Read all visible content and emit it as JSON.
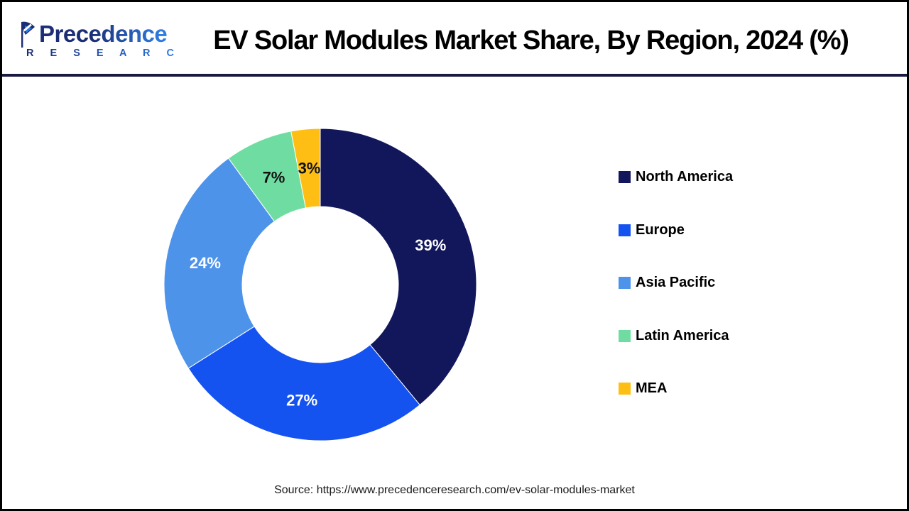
{
  "header": {
    "logo": {
      "name": "Precedence",
      "subtitle": "R E S E A R C H"
    },
    "title": "EV Solar Modules Market Share, By Region, 2024 (%)"
  },
  "chart_data": {
    "type": "pie",
    "subtype": "donut",
    "title": "EV Solar Modules Market Share, By Region, 2024 (%)",
    "unit": "%",
    "start_angle_deg": 0,
    "direction": "clockwise",
    "inner_radius_ratio": 0.5,
    "legend_position": "right",
    "series": [
      {
        "name": "North America",
        "value": 39,
        "label": "39%",
        "color": "#12175c",
        "label_color": "#ffffff"
      },
      {
        "name": "Europe",
        "value": 27,
        "label": "27%",
        "color": "#1553f0",
        "label_color": "#ffffff"
      },
      {
        "name": "Asia Pacific",
        "value": 24,
        "label": "24%",
        "color": "#4e93ea",
        "label_color": "#ffffff"
      },
      {
        "name": "Latin America",
        "value": 7,
        "label": "7%",
        "color": "#6fdda1",
        "label_color": "#111111"
      },
      {
        "name": "MEA",
        "value": 3,
        "label": "3%",
        "color": "#ffbe13",
        "label_color": "#111111"
      }
    ]
  },
  "footer": {
    "source": "Source: https://www.precedenceresearch.com/ev-solar-modules-market"
  },
  "colors": {
    "header_rule": "#191942",
    "page_border": "#000000",
    "title_text": "#000000",
    "legend_text": "#000000",
    "source_text": "#1a1a1a"
  }
}
